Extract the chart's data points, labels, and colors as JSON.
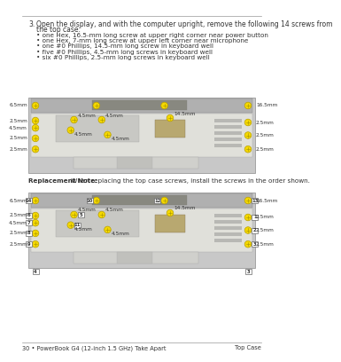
{
  "page_number": "30",
  "product": "PowerBook G4 (12-inch 1.5 GHz) Take Apart",
  "section": "Top Case",
  "background_color": "#ffffff",
  "rule_color": "#999999",
  "step_number": "3.",
  "step_text_line1": "Open the display, and with the computer upright, remove the following 14 screws from",
  "step_text_line2": "the top case:",
  "bullets": [
    "one Hex, 16.5-mm long screw at upper right corner near power button",
    "one Hex, 7-mm long screw at upper left corner near microphone",
    "one #0 Phillips, 14.5-mm long screw in keyboard well",
    "five #0 Phillips, 4.5-mm long screws in keyboard well",
    "six #0 Phillips, 2.5-mm long screws in keyboard well"
  ],
  "replacement_note_bold": "Replacement Note:",
  "replacement_note_text": " When replacing the top case screws, install the screws in the order shown.",
  "circle_fill": "#f5d800",
  "circle_edge": "#b8a000",
  "cross_color": "#a09000",
  "box_fill": "#ffffff",
  "box_edge": "#666666",
  "text_color": "#333333",
  "diagram_outer": "#c8c8c8",
  "diagram_body": "#e0e0da",
  "diagram_top_bar": "#b0b0b0",
  "diagram_slot": "#888880",
  "diagram_kbd": "#c8c8c4",
  "diagram_conn": "#b8a870",
  "diagram_trackpad": "#d0d0cc",
  "diagram_tp_btn": "#c0c0bc",
  "label_fs": 4.2,
  "bullet_fs": 5.2,
  "step_fs": 5.5,
  "footer_fs": 4.8,
  "note_fs": 5.2,
  "num_fs": 3.8
}
